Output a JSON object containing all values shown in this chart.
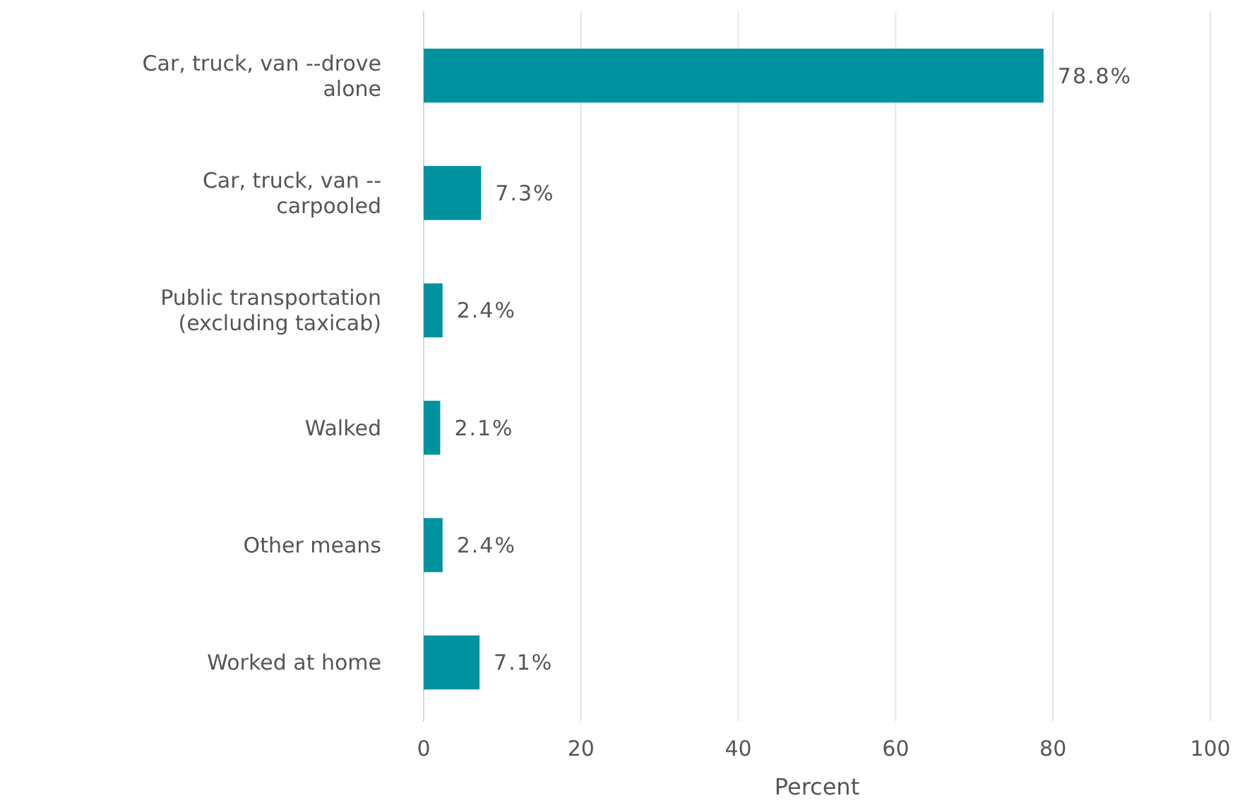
{
  "chart_data": {
    "type": "bar",
    "orientation": "horizontal",
    "categories": [
      "Car, truck, van --drove alone",
      "Car, truck, van --carpooled",
      "Public transportation (excluding taxicab)",
      "Walked",
      "Other means",
      "Worked at home"
    ],
    "values": [
      78.8,
      7.3,
      2.4,
      2.1,
      2.4,
      7.1
    ],
    "value_labels": [
      "78.8%",
      "7.3%",
      "2.4%",
      "2.1%",
      "2.4%",
      "7.1%"
    ],
    "color": "#00929f",
    "xlim": [
      0,
      100
    ],
    "xticks": [
      0,
      20,
      40,
      60,
      80,
      100
    ],
    "xlabel": "Percent",
    "grid": "x"
  }
}
